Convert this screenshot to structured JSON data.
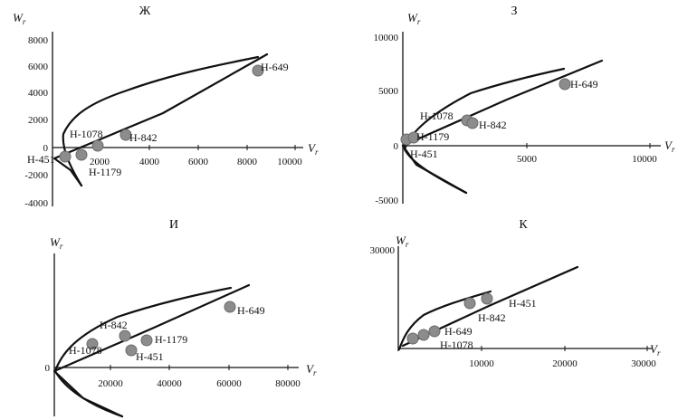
{
  "axis_labels": {
    "y": "W",
    "x": "V",
    "sub": "r"
  },
  "chart_data": [
    {
      "id": "zh",
      "type": "scatter",
      "title": "Ж",
      "xticks": [
        2000,
        4000,
        6000,
        8000,
        10000
      ],
      "yticks": [
        -4000,
        -2000,
        0,
        2000,
        4000,
        6000,
        8000
      ],
      "points": [
        {
          "name": "H-451",
          "x": 400,
          "y": -700
        },
        {
          "name": "H-1179",
          "x": 1100,
          "y": -600
        },
        {
          "name": "H-1078",
          "x": 1800,
          "y": 150
        },
        {
          "name": "H-842",
          "x": 3000,
          "y": 1000
        },
        {
          "name": "H-649",
          "x": 8400,
          "y": 5700
        }
      ]
    },
    {
      "id": "z",
      "type": "scatter",
      "title": "З",
      "xticks": [
        5000,
        10000
      ],
      "yticks": [
        -5000,
        0,
        5000,
        10000
      ],
      "points": [
        {
          "name": "H-451",
          "x": 150,
          "y": 300
        },
        {
          "name": "H-1179",
          "x": 450,
          "y": 800
        },
        {
          "name": "H-1078",
          "x": 2600,
          "y": 2300
        },
        {
          "name": "H-842",
          "x": 2900,
          "y": 2100
        },
        {
          "name": "H-649",
          "x": 6300,
          "y": 5500
        }
      ]
    },
    {
      "id": "i",
      "type": "scatter",
      "title": "И",
      "xticks": [
        20000,
        40000,
        60000,
        80000
      ],
      "yticks": [
        0
      ],
      "points": [
        {
          "name": "H-1078",
          "x": 14000,
          "y": 6100
        },
        {
          "name": "H-842",
          "x": 22500,
          "y": 8300
        },
        {
          "name": "H-451",
          "x": 26000,
          "y": 4600
        },
        {
          "name": "H-1179",
          "x": 31500,
          "y": 7000
        },
        {
          "name": "H-649",
          "x": 60000,
          "y": 16000
        }
      ]
    },
    {
      "id": "k",
      "type": "scatter",
      "title": "К",
      "xticks": [
        10000,
        20000,
        30000
      ],
      "yticks": [
        30000
      ],
      "points": [
        {
          "name": "H-1078",
          "x": 1000,
          "y": 3700
        },
        {
          "name": "H-1078",
          "x": 3000,
          "y": 4500
        },
        {
          "name": "H-649",
          "x": 4500,
          "y": 5200
        },
        {
          "name": "H-842",
          "x": 8500,
          "y": 13500
        },
        {
          "name": "H-451",
          "x": 10500,
          "y": 14500
        }
      ]
    }
  ]
}
